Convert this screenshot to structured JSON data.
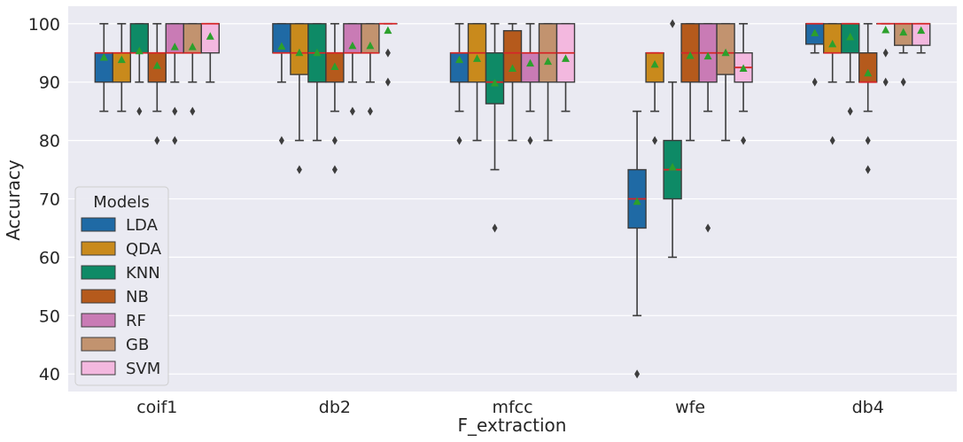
{
  "chart_data": {
    "type": "boxplot",
    "title": "",
    "xlabel": "F_extraction",
    "ylabel": "Accuracy",
    "ylim": [
      37,
      103
    ],
    "yticks": [
      40,
      50,
      60,
      70,
      80,
      90,
      100
    ],
    "ytick_labels": [
      "40",
      "50",
      "60",
      "70",
      "80",
      "90",
      "100"
    ],
    "categories": [
      "coif1",
      "db2",
      "mfcc",
      "wfe",
      "db4"
    ],
    "legend": {
      "title": "Models",
      "position": "lower-left",
      "entries": [
        "LDA",
        "QDA",
        "KNN",
        "NB",
        "RF",
        "GB",
        "SVM"
      ]
    },
    "series": [
      {
        "name": "LDA",
        "color": "#1f6aa5",
        "boxes": [
          {
            "q1": 90,
            "median": 95,
            "q3": 95,
            "whislo": 85,
            "whishi": 100,
            "mean": 94.2,
            "fliers": []
          },
          {
            "q1": 95,
            "median": 95,
            "q3": 100,
            "whislo": 90,
            "whishi": 100,
            "mean": 96.1,
            "fliers": [
              80
            ]
          },
          {
            "q1": 90,
            "median": 95,
            "q3": 95,
            "whislo": 85,
            "whishi": 100,
            "mean": 93.8,
            "fliers": [
              80
            ]
          },
          {
            "q1": 65,
            "median": 70,
            "q3": 75,
            "whislo": 50,
            "whishi": 85,
            "mean": 69.5,
            "fliers": [
              40
            ]
          },
          {
            "q1": 96.5,
            "median": 100,
            "q3": 100,
            "whislo": 95,
            "whishi": 100,
            "mean": 98.4,
            "fliers": [
              90
            ]
          }
        ]
      },
      {
        "name": "QDA",
        "color": "#c98a1c",
        "boxes": [
          {
            "q1": 90,
            "median": 95,
            "q3": 95,
            "whislo": 85,
            "whishi": 100,
            "mean": 93.8,
            "fliers": []
          },
          {
            "q1": 91.3,
            "median": 95,
            "q3": 100,
            "whislo": 80,
            "whishi": 100,
            "mean": 95.0,
            "fliers": [
              75
            ]
          },
          {
            "q1": 90,
            "median": 95,
            "q3": 100,
            "whislo": 80,
            "whishi": 100,
            "mean": 94.0,
            "fliers": []
          },
          {
            "q1": 90,
            "median": 95,
            "q3": 95,
            "whislo": 85,
            "whishi": 95,
            "mean": 93.0,
            "fliers": [
              80
            ]
          },
          {
            "q1": 95,
            "median": 95,
            "q3": 100,
            "whislo": 90,
            "whishi": 100,
            "mean": 96.5,
            "fliers": [
              80
            ]
          }
        ]
      },
      {
        "name": "KNN",
        "color": "#0e8a66",
        "boxes": [
          {
            "q1": 95,
            "median": 95,
            "q3": 100,
            "whislo": 90,
            "whishi": 100,
            "mean": 95.3,
            "fliers": [
              85
            ]
          },
          {
            "q1": 90,
            "median": 95,
            "q3": 100,
            "whislo": 80,
            "whishi": 100,
            "mean": 95.0,
            "fliers": []
          },
          {
            "q1": 86.3,
            "median": 90,
            "q3": 95,
            "whislo": 75,
            "whishi": 100,
            "mean": 89.8,
            "fliers": [
              65
            ]
          },
          {
            "q1": 70,
            "median": 75,
            "q3": 80,
            "whislo": 60,
            "whishi": 90,
            "mean": 75.4,
            "fliers": [
              100
            ]
          },
          {
            "q1": 95,
            "median": 100,
            "q3": 100,
            "whislo": 90,
            "whishi": 100,
            "mean": 97.7,
            "fliers": [
              85
            ]
          }
        ]
      },
      {
        "name": "NB",
        "color": "#b55a1c",
        "boxes": [
          {
            "q1": 90,
            "median": 95,
            "q3": 95,
            "whislo": 85,
            "whishi": 100,
            "mean": 92.8,
            "fliers": [
              80
            ]
          },
          {
            "q1": 90,
            "median": 95,
            "q3": 95,
            "whislo": 85,
            "whishi": 100,
            "mean": 92.6,
            "fliers": [
              80,
              75
            ]
          },
          {
            "q1": 90,
            "median": 95,
            "q3": 98.8,
            "whislo": 80,
            "whishi": 100,
            "mean": 92.3,
            "fliers": []
          },
          {
            "q1": 90,
            "median": 95,
            "q3": 100,
            "whislo": 80,
            "whishi": 100,
            "mean": 94.5,
            "fliers": []
          },
          {
            "q1": 90,
            "median": 90,
            "q3": 95,
            "whislo": 85,
            "whishi": 100,
            "mean": 91.5,
            "fliers": [
              80,
              75
            ]
          }
        ]
      },
      {
        "name": "RF",
        "color": "#c97bb5",
        "boxes": [
          {
            "q1": 95,
            "median": 95,
            "q3": 100,
            "whislo": 90,
            "whishi": 100,
            "mean": 96.0,
            "fliers": [
              85,
              80
            ]
          },
          {
            "q1": 95,
            "median": 95,
            "q3": 100,
            "whislo": 90,
            "whishi": 100,
            "mean": 96.2,
            "fliers": [
              85
            ]
          },
          {
            "q1": 90,
            "median": 95,
            "q3": 95,
            "whislo": 85,
            "whishi": 100,
            "mean": 93.2,
            "fliers": [
              80
            ]
          },
          {
            "q1": 90,
            "median": 95,
            "q3": 100,
            "whislo": 85,
            "whishi": 100,
            "mean": 94.4,
            "fliers": [
              65
            ]
          },
          {
            "q1": 100,
            "median": 100,
            "q3": 100,
            "whislo": 100,
            "whishi": 100,
            "mean": 98.9,
            "fliers": [
              95,
              90
            ]
          }
        ]
      },
      {
        "name": "GB",
        "color": "#c2936f",
        "boxes": [
          {
            "q1": 95,
            "median": 95,
            "q3": 100,
            "whislo": 90,
            "whishi": 100,
            "mean": 96.0,
            "fliers": [
              85
            ]
          },
          {
            "q1": 95,
            "median": 95,
            "q3": 100,
            "whislo": 90,
            "whishi": 100,
            "mean": 96.2,
            "fliers": [
              85
            ]
          },
          {
            "q1": 90,
            "median": 95,
            "q3": 100,
            "whislo": 80,
            "whishi": 100,
            "mean": 93.5,
            "fliers": []
          },
          {
            "q1": 91.3,
            "median": 95,
            "q3": 100,
            "whislo": 80,
            "whishi": 100,
            "mean": 95.0,
            "fliers": []
          },
          {
            "q1": 96.3,
            "median": 100,
            "q3": 100,
            "whislo": 95,
            "whishi": 100,
            "mean": 98.5,
            "fliers": [
              90
            ]
          }
        ]
      },
      {
        "name": "SVM",
        "color": "#f3b8df",
        "boxes": [
          {
            "q1": 95,
            "median": 100,
            "q3": 100,
            "whislo": 90,
            "whishi": 100,
            "mean": 97.8,
            "fliers": []
          },
          {
            "q1": 100,
            "median": 100,
            "q3": 100,
            "whislo": 100,
            "whishi": 100,
            "mean": 98.8,
            "fliers": [
              95,
              90
            ]
          },
          {
            "q1": 90,
            "median": 95,
            "q3": 100,
            "whislo": 85,
            "whishi": 100,
            "mean": 94.0,
            "fliers": []
          },
          {
            "q1": 90,
            "median": 92.5,
            "q3": 95,
            "whislo": 85,
            "whishi": 100,
            "mean": 92.3,
            "fliers": [
              80
            ]
          },
          {
            "q1": 96.3,
            "median": 100,
            "q3": 100,
            "whislo": 95,
            "whishi": 100,
            "mean": 98.8,
            "fliers": []
          }
        ]
      }
    ]
  }
}
